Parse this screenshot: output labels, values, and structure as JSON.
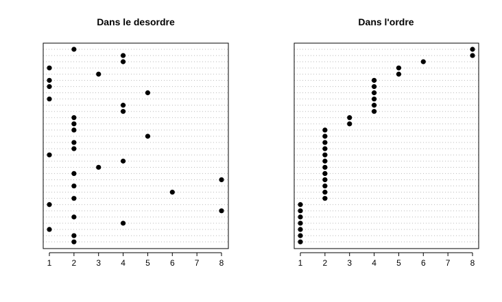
{
  "chart_data": [
    {
      "type": "scatter",
      "title": "Dans le desordre",
      "xlabel": "",
      "ylabel": "",
      "xlim": [
        1,
        8
      ],
      "x_ticks": [
        "1",
        "2",
        "3",
        "4",
        "5",
        "6",
        "7",
        "8"
      ],
      "grid": "horizontal dotted",
      "values": [
        2,
        4,
        4,
        1,
        3,
        1,
        1,
        5,
        1,
        4,
        4,
        2,
        2,
        2,
        5,
        2,
        2,
        1,
        4,
        3,
        2,
        8,
        2,
        6,
        2,
        1,
        8,
        2,
        4,
        1,
        2,
        2
      ]
    },
    {
      "type": "scatter",
      "title": "Dans l'ordre",
      "xlabel": "",
      "ylabel": "",
      "xlim": [
        1,
        8
      ],
      "x_ticks": [
        "1",
        "2",
        "3",
        "4",
        "5",
        "6",
        "7",
        "8"
      ],
      "grid": "horizontal dotted",
      "values": [
        8,
        8,
        6,
        5,
        5,
        4,
        4,
        4,
        4,
        4,
        4,
        3,
        3,
        2,
        2,
        2,
        2,
        2,
        2,
        2,
        2,
        2,
        2,
        2,
        2,
        1,
        1,
        1,
        1,
        1,
        1,
        1
      ]
    }
  ]
}
